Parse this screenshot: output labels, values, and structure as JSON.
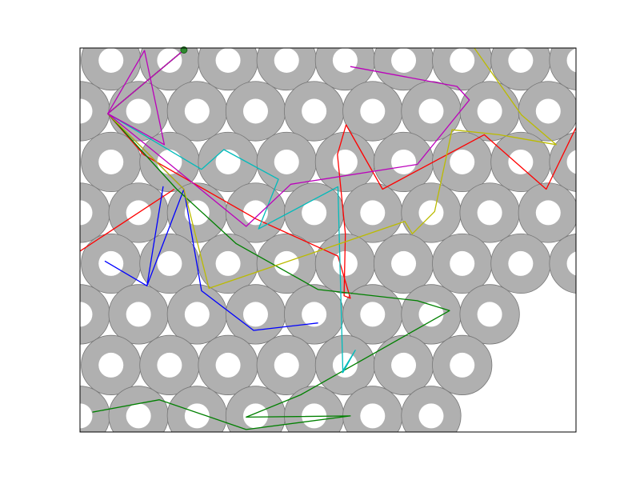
{
  "chart_data": {
    "type": "scatter",
    "title": "",
    "xlabel": "",
    "ylabel": "",
    "xlim": [
      0,
      20
    ],
    "ylim": [
      -15.5,
      0
    ],
    "grid": false,
    "legend": "none",
    "axes_visible": false,
    "colors": {
      "ring": "#b0b0b0",
      "ring_edge": "#777777",
      "hole": "#ffffff",
      "frame": "#000000",
      "start_point": "#2e8b2e"
    },
    "rings": {
      "outer_radius": 1.2,
      "inner_radius": 0.5,
      "rows": [
        {
          "y": -0.5,
          "x_start": 1.25,
          "count": 9
        },
        {
          "y": -2.55,
          "x_start": 0,
          "count": 10
        },
        {
          "y": -4.6,
          "x_start": 1.25,
          "count": 9
        },
        {
          "y": -6.65,
          "x_start": 0,
          "count": 10
        },
        {
          "y": -8.7,
          "x_start": 1.25,
          "count": 9
        },
        {
          "y": -10.75,
          "x_start": 0,
          "count": 8
        },
        {
          "y": -12.8,
          "x_start": 1.25,
          "count": 7
        },
        {
          "y": -14.85,
          "x_start": 0,
          "count": 7
        }
      ],
      "spacing": 2.36
    },
    "start_point": {
      "x": 4.19,
      "y": -0.08
    },
    "series": [
      {
        "color": "#ff0000",
        "x": [
          4.19,
          1.12,
          2.56,
          7.1,
          10.4,
          10.9,
          10.65,
          10.7,
          10.38,
          10.73,
          12.2,
          16.3,
          18.8,
          20.2
        ],
        "y": [
          -0.08,
          -2.65,
          -4.3,
          -6.9,
          -8.4,
          -10.1,
          -10.0,
          -7.5,
          -4.3,
          -3.1,
          -5.7,
          -3.5,
          -5.7,
          -2.8
        ]
      },
      {
        "color": "#ff0000",
        "x": [
          0,
          3.8
        ],
        "y": [
          -8.2,
          -5.7
        ]
      },
      {
        "color": "#0000ff",
        "x": [
          4.19,
          1.12,
          4.19,
          4.9,
          7.0,
          9.6
        ],
        "y": [
          -0.08,
          -2.65,
          -5.7,
          -9.8,
          -11.4,
          -11.1
        ]
      },
      {
        "color": "#0000ff",
        "x": [
          4.19,
          2.7,
          3.35,
          2.7,
          1.0
        ],
        "y": [
          -5.7,
          -9.6,
          -5.6,
          -9.6,
          -8.6
        ]
      },
      {
        "color": "#008000",
        "x": [
          4.19,
          1.12,
          3.9,
          6.3,
          9.6,
          13.6,
          14.9,
          8.9,
          6.7,
          10.9,
          6.7,
          3.2,
          0.5
        ],
        "y": [
          -0.08,
          -2.65,
          -5.7,
          -7.9,
          -9.75,
          -10.2,
          -10.6,
          -14.0,
          -14.9,
          -14.85,
          -15.4,
          -14.2,
          -14.7
        ]
      },
      {
        "color": "#00bbbb",
        "x": [
          4.19,
          1.12,
          4.9,
          5.8,
          8.0,
          7.2,
          10.4,
          10.6,
          11.1,
          10.55
        ],
        "y": [
          -0.08,
          -2.65,
          -4.9,
          -4.1,
          -5.3,
          -7.3,
          -5.6,
          -13.1,
          -12.2,
          -13.1
        ]
      },
      {
        "color": "#bbbb00",
        "x": [
          4.19,
          1.12,
          4.19,
          5.2,
          13.1,
          13.4,
          14.3,
          15.0,
          16.9,
          19.2,
          17.8,
          15.9
        ],
        "y": [
          -0.08,
          -2.65,
          -5.7,
          -9.7,
          -7.0,
          -7.5,
          -6.6,
          -3.3,
          -3.5,
          -3.9,
          -2.7,
          0.0
        ]
      },
      {
        "color": "#bb00bb",
        "x": [
          4.19,
          1.12,
          3.4,
          2.6,
          1.12,
          6.7,
          8.5,
          13.6,
          15.7,
          15.2,
          10.9
        ],
        "y": [
          -0.08,
          -2.65,
          -3.9,
          -0.1,
          -2.65,
          -7.2,
          -5.5,
          -4.7,
          -2.1,
          -1.55,
          -0.75
        ]
      }
    ]
  }
}
